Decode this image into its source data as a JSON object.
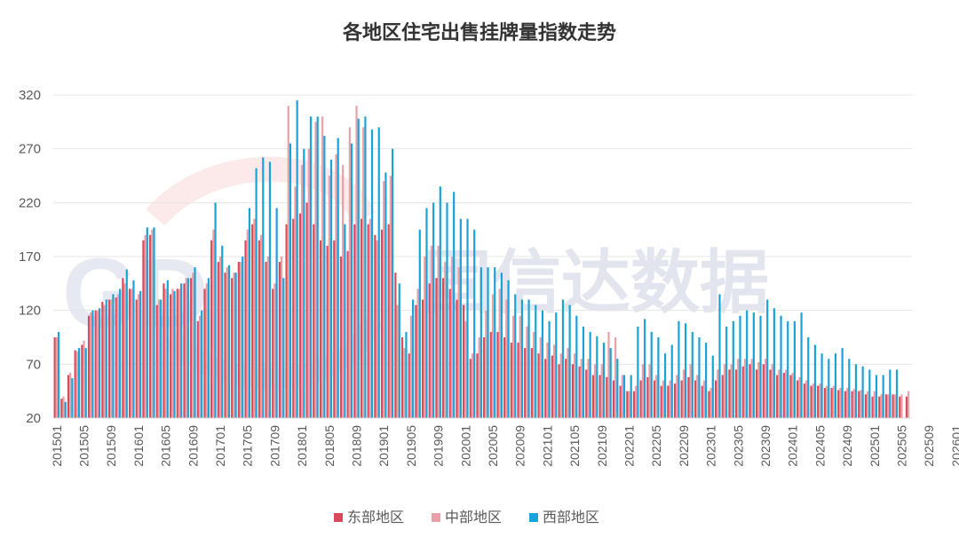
{
  "chart_data": {
    "type": "bar",
    "title": "各地区住宅出售挂牌量指数走势",
    "xlabel": "",
    "ylabel": "",
    "ylim": [
      20,
      320
    ],
    "yticks": [
      20,
      70,
      120,
      170,
      220,
      270,
      320
    ],
    "grid": true,
    "legend_position": "bottom-center",
    "start_period": "201501",
    "x_tick_labels": [
      "201501",
      "201505",
      "201509",
      "201601",
      "201605",
      "201609",
      "201701",
      "201705",
      "201709",
      "201801",
      "201805",
      "201809",
      "201901",
      "201905",
      "201909",
      "202001",
      "202005",
      "202009",
      "202101",
      "202105",
      "202109",
      "202201",
      "202205",
      "202209",
      "202301",
      "202305",
      "202309",
      "202401",
      "202405",
      "202409",
      "202501",
      "202505",
      "202509",
      "202601"
    ],
    "colors": {
      "east": "#d94a5a",
      "central": "#eb9fa8",
      "west": "#1aa3d8"
    },
    "series": [
      {
        "name": "东部地区",
        "color": "#d94a5a",
        "values": [
          95,
          38,
          60,
          83,
          88,
          115,
          120,
          128,
          130,
          132,
          150,
          140,
          130,
          185,
          190,
          125,
          145,
          135,
          140,
          145,
          150,
          110,
          140,
          185,
          165,
          155,
          150,
          165,
          185,
          200,
          185,
          165,
          140,
          165,
          200,
          205,
          210,
          220,
          200,
          185,
          180,
          185,
          170,
          175,
          200,
          205,
          200,
          190,
          195,
          200,
          155,
          95,
          80,
          125,
          130,
          145,
          150,
          150,
          140,
          130,
          125,
          75,
          80,
          95,
          100,
          100,
          95,
          90,
          90,
          85,
          85,
          80,
          75,
          78,
          70,
          75,
          70,
          68,
          65,
          60,
          60,
          58,
          55,
          50,
          45,
          45,
          55,
          58,
          55,
          50,
          50,
          52,
          55,
          58,
          55,
          50,
          45,
          55,
          60,
          65,
          65,
          68,
          70,
          65,
          70,
          65,
          60,
          62,
          60,
          55,
          52,
          50,
          50,
          48,
          48,
          46,
          45,
          45,
          45,
          42,
          40,
          40,
          42,
          42,
          40,
          40
        ]
      },
      {
        "name": "中部地区",
        "color": "#eb9fa8",
        "values": [
          95,
          40,
          62,
          82,
          92,
          118,
          120,
          125,
          130,
          135,
          145,
          140,
          135,
          190,
          195,
          130,
          140,
          140,
          140,
          150,
          155,
          115,
          145,
          195,
          170,
          160,
          155,
          165,
          195,
          205,
          190,
          170,
          145,
          170,
          310,
          235,
          255,
          270,
          295,
          300,
          245,
          265,
          255,
          290,
          310,
          290,
          205,
          185,
          240,
          245,
          125,
          85,
          115,
          140,
          170,
          180,
          180,
          165,
          170,
          160,
          110,
          80,
          95,
          120,
          135,
          140,
          130,
          115,
          115,
          105,
          100,
          95,
          90,
          88,
          80,
          85,
          80,
          75,
          75,
          70,
          70,
          100,
          95,
          60,
          45,
          50,
          70,
          70,
          60,
          55,
          55,
          60,
          65,
          70,
          60,
          55,
          48,
          65,
          70,
          70,
          75,
          75,
          75,
          72,
          75,
          70,
          65,
          65,
          62,
          58,
          55,
          52,
          52,
          50,
          50,
          48,
          48,
          47,
          46,
          45,
          45,
          42,
          42,
          42,
          42,
          45
        ]
      },
      {
        "name": "西部地区",
        "color": "#1aa3d8",
        "values": [
          100,
          35,
          57,
          85,
          85,
          120,
          122,
          130,
          135,
          140,
          158,
          148,
          138,
          197,
          197,
          130,
          148,
          138,
          145,
          150,
          160,
          120,
          150,
          220,
          180,
          162,
          155,
          170,
          215,
          252,
          262,
          258,
          215,
          150,
          275,
          315,
          270,
          300,
          300,
          282,
          260,
          280,
          200,
          275,
          298,
          300,
          288,
          290,
          248,
          270,
          145,
          100,
          130,
          195,
          215,
          220,
          235,
          220,
          230,
          205,
          205,
          195,
          160,
          160,
          160,
          155,
          148,
          135,
          130,
          130,
          125,
          120,
          110,
          118,
          130,
          125,
          115,
          105,
          100,
          96,
          90,
          85,
          75,
          60,
          60,
          105,
          112,
          100,
          95,
          80,
          88,
          110,
          108,
          100,
          95,
          90,
          78,
          135,
          105,
          110,
          115,
          120,
          118,
          115,
          130,
          122,
          115,
          110,
          110,
          118,
          95,
          88,
          80,
          75,
          80,
          85,
          75,
          70,
          68,
          65,
          60,
          60,
          65,
          65
        ]
      }
    ]
  },
  "watermark": {
    "logo": "GD",
    "text": "固信达数据"
  }
}
